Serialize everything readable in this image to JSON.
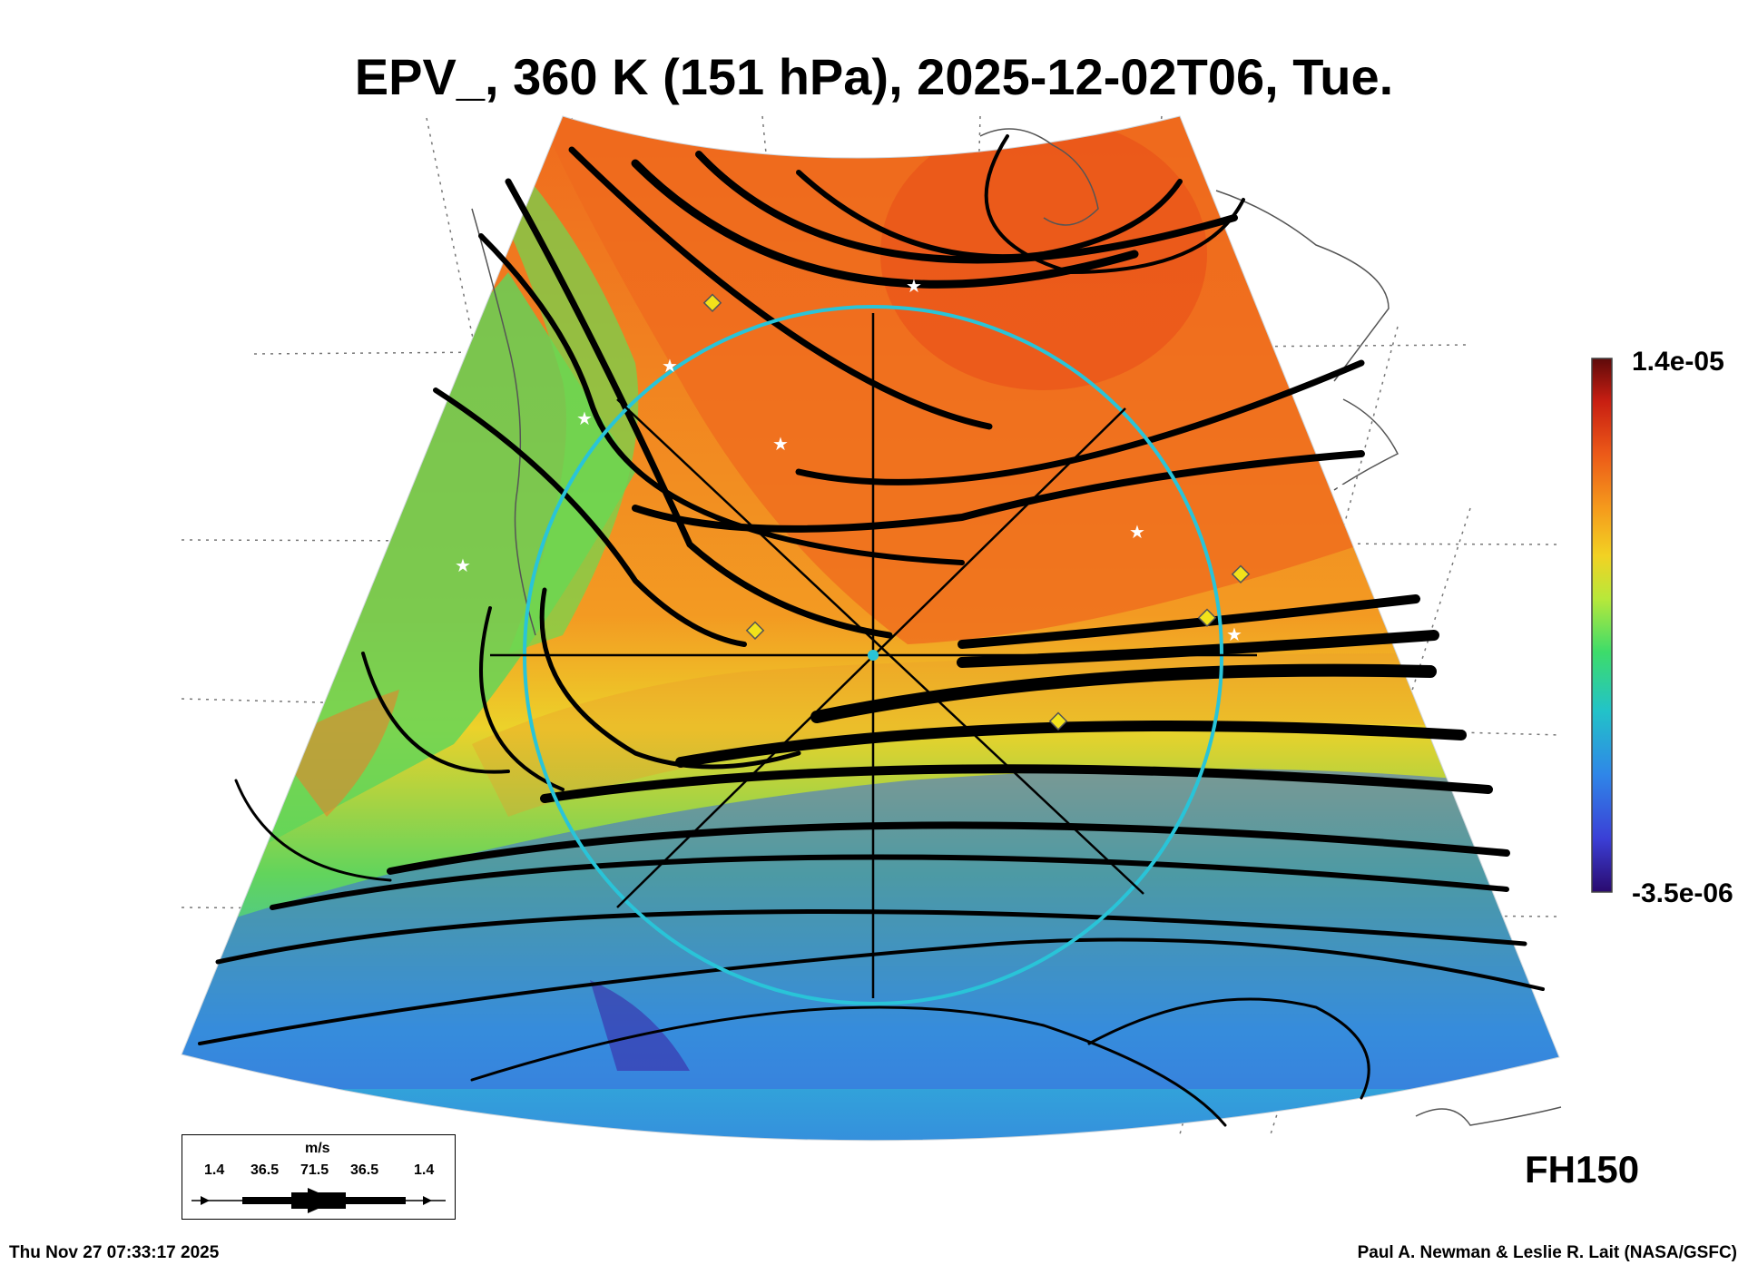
{
  "title": "EPV_, 360 K (151 hPa), 2025-12-02T06, Tue.",
  "colorbar": {
    "max_label": "1.4e-05",
    "min_label": "-3.5e-06",
    "colors": [
      "#2a0a6e",
      "#3b3fd6",
      "#2f86e8",
      "#22c3c8",
      "#3ddc6a",
      "#b8e83a",
      "#f2d223",
      "#f59a1c",
      "#ec5a18",
      "#c81e12",
      "#5e0a0a"
    ]
  },
  "wind_legend": {
    "unit": "m/s",
    "values": [
      "1.4",
      "36.5",
      "71.5",
      "36.5",
      "1.4"
    ]
  },
  "forecast_hour": "FH150",
  "timestamp": "Thu Nov 27 07:33:17 2025",
  "credit": "Paul A. Newman & Leslie R. Lait (NASA/GSFC)"
}
